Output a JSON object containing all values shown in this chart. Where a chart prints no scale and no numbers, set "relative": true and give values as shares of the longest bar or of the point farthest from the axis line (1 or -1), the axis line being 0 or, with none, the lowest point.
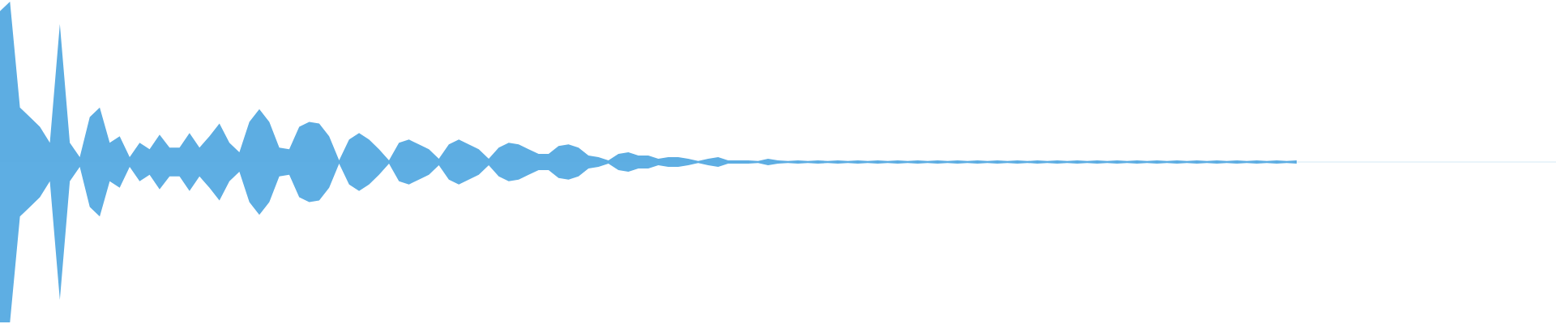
{
  "chart_data": {
    "type": "area",
    "relative": true,
    "categories": [
      null,
      null,
      null,
      null,
      null,
      null,
      null,
      null,
      null,
      null,
      null,
      null,
      null,
      null,
      null,
      null,
      null,
      null,
      null,
      null,
      null,
      null,
      null,
      null,
      null,
      null,
      null,
      null,
      null,
      null,
      null,
      null,
      null,
      null,
      null,
      null,
      null,
      null,
      null,
      null,
      null,
      null,
      null,
      null,
      null,
      null,
      null,
      null,
      null,
      null,
      null,
      null,
      null,
      null,
      null,
      null,
      null,
      null,
      null,
      null,
      null,
      null,
      null,
      null,
      null,
      null,
      null,
      null,
      null,
      null,
      null,
      null,
      null,
      null,
      null,
      null,
      null,
      null,
      null,
      null,
      null,
      null,
      null,
      null,
      null,
      null,
      null,
      null,
      null,
      null,
      null,
      null,
      null,
      null,
      null,
      null,
      null,
      null,
      null,
      null,
      null,
      null,
      null,
      null,
      null,
      null,
      null,
      null,
      null,
      null,
      null,
      null,
      null,
      null,
      null,
      null,
      null,
      null,
      null,
      null,
      null,
      null,
      null,
      null,
      null,
      null,
      null,
      null,
      null,
      null,
      null,
      null,
      null,
      null,
      null,
      null,
      null,
      null,
      null,
      null,
      null,
      null,
      null,
      null,
      null,
      null,
      null,
      null,
      null,
      null,
      null,
      null,
      null,
      null,
      null,
      null,
      null
    ],
    "series": [
      {
        "color": "#5dade2",
        "values": [
          0.94,
          1,
          0.34,
          0.28,
          0.22,
          0.12,
          0.86,
          0.12,
          0.03,
          0.28,
          0.34,
          0.12,
          0.16,
          0.03,
          0.12,
          0.08,
          0.17,
          0.09,
          0.09,
          0.18,
          0.09,
          0.16,
          0.24,
          0.12,
          0.06,
          0.25,
          0.33,
          0.25,
          0.09,
          0.08,
          0.22,
          0.25,
          0.24,
          0.16,
          0.01,
          0.14,
          0.18,
          0.14,
          0.08,
          0.01,
          0.12,
          0.14,
          0.11,
          0.08,
          0.02,
          0.11,
          0.14,
          0.11,
          0.08,
          0.02,
          0.09,
          0.12,
          0.11,
          0.08,
          0.05,
          0.05,
          0.1,
          0.11,
          0.09,
          0.04,
          0.03,
          0.01,
          0.05,
          0.06,
          0.04,
          0.04,
          0.02,
          0.03,
          0.03,
          0.02,
          0.006,
          0.02,
          0.03,
          0.01,
          0.01,
          0.01,
          0.006,
          0.02,
          0.01,
          0.006,
          0.01,
          0.006,
          0.01,
          0.006,
          0.01,
          0.006,
          0.01,
          0.006,
          0.01,
          0.006,
          0.01,
          0.006,
          0.01,
          0.006,
          0.01,
          0.006,
          0.01,
          0.006,
          0.01,
          0.006,
          0.01,
          0.006,
          0.01,
          0.006,
          0.01,
          0.006,
          0.01,
          0.006,
          0.01,
          0.006,
          0.01,
          0.006,
          0.01,
          0.006,
          0.01,
          0.006,
          0.01,
          0.006,
          0.01,
          0.006,
          0.01,
          0.006,
          0.01,
          0.006,
          0.01,
          0.006,
          0.01,
          0.006,
          0.01,
          0.006,
          0.01,
          null,
          null,
          null,
          null,
          null,
          null,
          null,
          null,
          null,
          null,
          null,
          null,
          null,
          null,
          null,
          null,
          null,
          null,
          null,
          null,
          null,
          null,
          null,
          null,
          null,
          null
        ]
      },
      {
        "color": "#5eaee3",
        "values": [
          -1,
          -1,
          -0.34,
          -0.28,
          -0.22,
          -0.12,
          -0.86,
          -0.12,
          -0.03,
          -0.28,
          -0.34,
          -0.12,
          -0.16,
          -0.03,
          -0.12,
          -0.08,
          -0.17,
          -0.09,
          -0.09,
          -0.18,
          -0.09,
          -0.16,
          -0.24,
          -0.12,
          -0.06,
          -0.25,
          -0.33,
          -0.25,
          -0.09,
          -0.08,
          -0.22,
          -0.25,
          -0.24,
          -0.16,
          -0.01,
          -0.14,
          -0.18,
          -0.14,
          -0.08,
          -0.01,
          -0.12,
          -0.14,
          -0.11,
          -0.08,
          -0.02,
          -0.11,
          -0.14,
          -0.11,
          -0.08,
          -0.02,
          -0.09,
          -0.12,
          -0.11,
          -0.08,
          -0.05,
          -0.05,
          -0.1,
          -0.11,
          -0.09,
          -0.04,
          -0.03,
          -0.01,
          -0.05,
          -0.06,
          -0.04,
          -0.04,
          -0.02,
          -0.03,
          -0.03,
          -0.02,
          -0.006,
          -0.02,
          -0.03,
          -0.01,
          -0.01,
          -0.01,
          -0.006,
          -0.02,
          -0.01,
          -0.006,
          -0.01,
          -0.006,
          -0.01,
          -0.006,
          -0.01,
          -0.006,
          -0.01,
          -0.006,
          -0.01,
          -0.006,
          -0.01,
          -0.006,
          -0.01,
          -0.006,
          -0.01,
          -0.006,
          -0.01,
          -0.006,
          -0.01,
          -0.006,
          -0.01,
          -0.006,
          -0.01,
          -0.006,
          -0.01,
          -0.006,
          -0.01,
          -0.006,
          -0.01,
          -0.006,
          -0.01,
          -0.006,
          -0.01,
          -0.006,
          -0.01,
          -0.006,
          -0.01,
          -0.006,
          -0.01,
          -0.006,
          -0.01,
          -0.006,
          -0.01,
          -0.006,
          -0.01,
          -0.006,
          -0.01,
          -0.006,
          -0.01,
          -0.006,
          -0.01,
          null,
          null,
          null,
          null,
          null,
          null,
          null,
          null,
          null,
          null,
          null,
          null,
          null,
          null,
          null,
          null,
          null,
          null,
          null,
          null,
          null,
          null,
          null,
          null,
          null,
          null
        ]
      }
    ]
  }
}
